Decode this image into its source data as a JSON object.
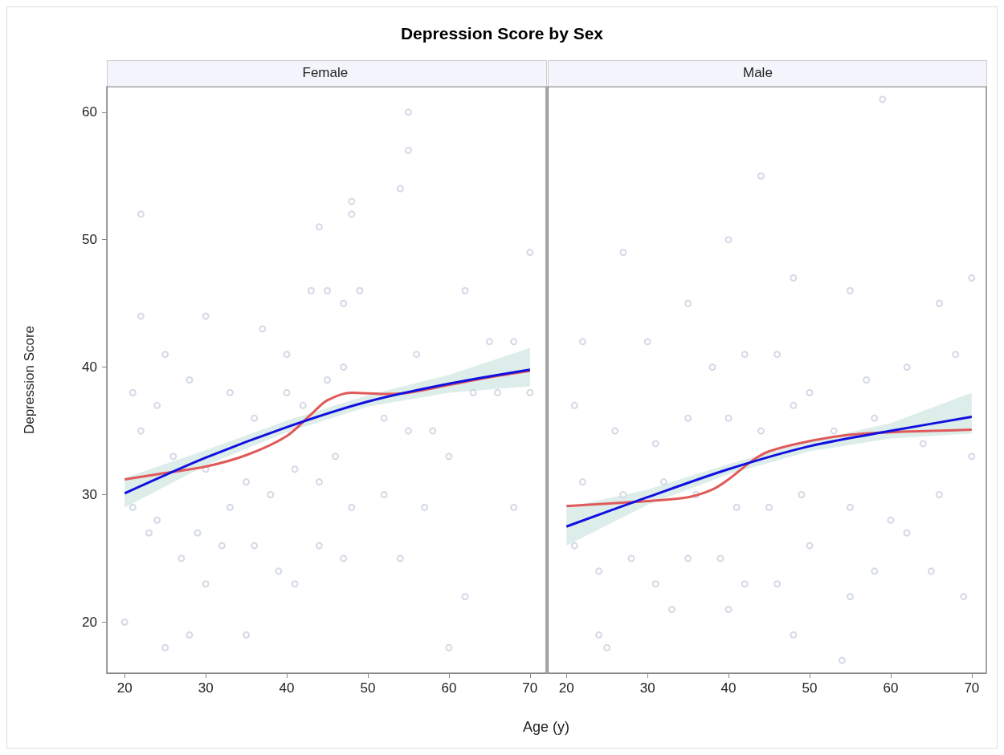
{
  "chart_data": [
    {
      "type": "scatter",
      "title": "Depression Score by Sex",
      "subtitle": "Female",
      "xlabel": "Age (y)",
      "ylabel": "Depression Score",
      "xlim": [
        17.8,
        72
      ],
      "xticks": [
        20,
        30,
        40,
        50,
        60,
        70
      ],
      "ylim": [
        16,
        62
      ],
      "yticks": [
        20,
        30,
        40,
        50,
        60
      ],
      "grid": false,
      "series": [
        {
          "marker": "circle",
          "color": "#c9d0e0",
          "x": [
            55,
            55,
            54,
            48,
            48,
            44,
            22,
            22,
            25,
            30,
            37,
            40,
            43,
            45,
            47,
            49,
            56,
            62,
            65,
            68,
            70,
            21,
            24,
            28,
            33,
            36,
            40,
            42,
            45,
            47,
            52,
            55,
            58,
            63,
            66,
            22,
            26,
            30,
            35,
            38,
            41,
            44,
            48,
            52,
            57,
            68,
            21,
            24,
            27,
            30,
            32,
            36,
            39,
            41,
            44,
            47,
            54,
            62,
            20,
            25,
            28,
            35,
            60,
            23,
            29,
            33,
            46,
            60,
            70
          ],
          "values": [
            60,
            57,
            54,
            53,
            52,
            51,
            52,
            44,
            41,
            44,
            43,
            41,
            46,
            46,
            45,
            46,
            41,
            46,
            42,
            42,
            49,
            38,
            37,
            39,
            38,
            36,
            38,
            37,
            39,
            40,
            36,
            35,
            35,
            38,
            38,
            35,
            33,
            32,
            31,
            30,
            32,
            31,
            29,
            30,
            29,
            29,
            29,
            28,
            25,
            23,
            26,
            26,
            24,
            23,
            26,
            25,
            25,
            22,
            20,
            18,
            19,
            19,
            18,
            27,
            27,
            29,
            33,
            33,
            38
          ]
        },
        {
          "type": "line",
          "color": "#e05a5a",
          "x": [
            20,
            25,
            30,
            35,
            40,
            43,
            45,
            48,
            52,
            55,
            60,
            65,
            70
          ],
          "values": [
            31.2,
            31.7,
            32.2,
            33.1,
            34.6,
            36.3,
            37.4,
            38.0,
            37.9,
            38.0,
            38.6,
            39.2,
            39.7
          ]
        },
        {
          "type": "line",
          "color": "#1010e0",
          "x": [
            20,
            30,
            40,
            50,
            60,
            70
          ],
          "values": [
            30.1,
            32.9,
            35.3,
            37.3,
            38.7,
            39.8
          ],
          "lower": [
            29.0,
            32.3,
            34.9,
            36.9,
            38.0,
            38.5
          ],
          "upper": [
            31.3,
            33.5,
            35.8,
            37.8,
            39.4,
            41.5
          ]
        }
      ]
    },
    {
      "type": "scatter",
      "subtitle": "Male",
      "xlim": [
        17.7,
        71.8
      ],
      "xticks": [
        20,
        30,
        40,
        50,
        60,
        70
      ],
      "ylim": [
        16,
        62
      ],
      "yticks": [
        20,
        30,
        40,
        50,
        60
      ],
      "tick_labels": "x",
      "grid": false,
      "series": [
        {
          "marker": "circle",
          "color": "#c9d0e0",
          "x": [
            59,
            44,
            27,
            35,
            40,
            48,
            55,
            66,
            70,
            22,
            30,
            38,
            42,
            46,
            50,
            57,
            62,
            68,
            21,
            26,
            31,
            35,
            40,
            44,
            48,
            53,
            58,
            64,
            70,
            22,
            27,
            32,
            36,
            41,
            45,
            49,
            55,
            60,
            66,
            21,
            24,
            28,
            31,
            35,
            39,
            42,
            46,
            50,
            55,
            62,
            69,
            24,
            25,
            33,
            40,
            48,
            54,
            58,
            65
          ],
          "values": [
            61,
            55,
            49,
            45,
            50,
            47,
            46,
            45,
            47,
            42,
            42,
            40,
            41,
            41,
            38,
            39,
            40,
            41,
            37,
            35,
            34,
            36,
            36,
            35,
            37,
            35,
            36,
            34,
            33,
            31,
            30,
            31,
            30,
            29,
            29,
            30,
            29,
            28,
            30,
            26,
            24,
            25,
            23,
            25,
            25,
            23,
            23,
            26,
            22,
            27,
            22,
            19,
            18,
            21,
            21,
            19,
            17,
            24,
            24
          ]
        },
        {
          "type": "line",
          "color": "#e05a5a",
          "x": [
            20,
            25,
            30,
            35,
            38,
            40,
            43,
            45,
            50,
            55,
            60,
            65,
            70
          ],
          "values": [
            29.1,
            29.3,
            29.5,
            29.8,
            30.4,
            31.2,
            32.7,
            33.4,
            34.2,
            34.7,
            34.9,
            35.0,
            35.1
          ]
        },
        {
          "type": "line",
          "color": "#1010e0",
          "x": [
            20,
            30,
            40,
            50,
            60,
            70
          ],
          "values": [
            27.5,
            29.8,
            32.0,
            33.8,
            35.0,
            36.1
          ],
          "lower": [
            26.0,
            29.2,
            31.6,
            33.4,
            34.4,
            34.8
          ],
          "upper": [
            29.0,
            30.4,
            32.4,
            34.2,
            35.6,
            38.0
          ]
        }
      ]
    }
  ]
}
